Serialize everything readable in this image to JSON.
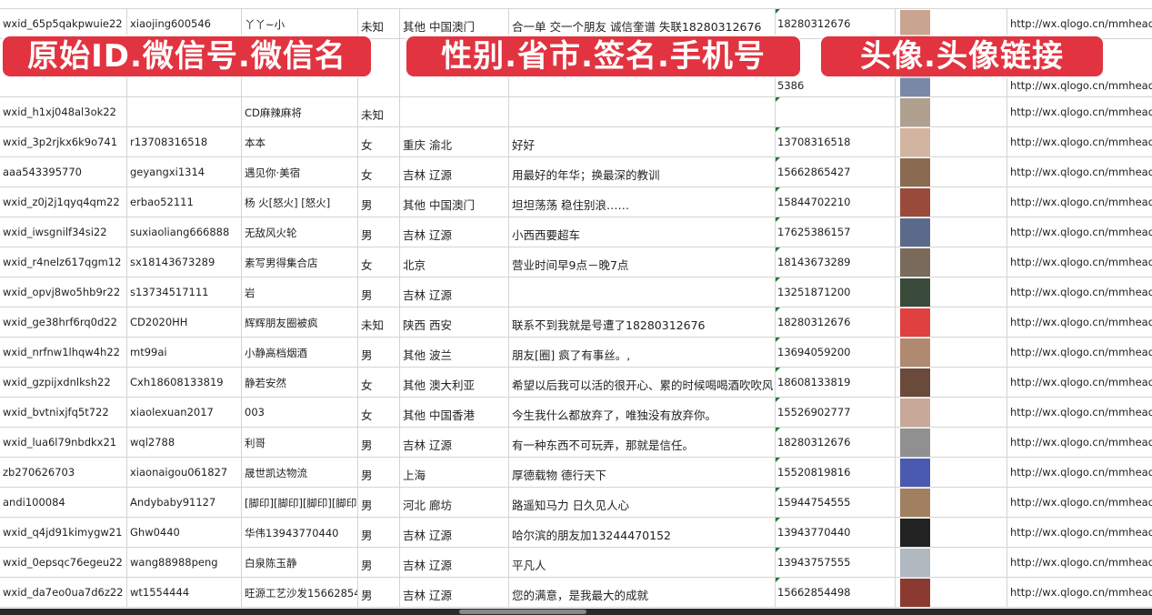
{
  "columns_visible": [
    "原始ID",
    "微信号",
    "微信名",
    "性别",
    "省市",
    "签名",
    "手机号",
    "头像",
    "头像链接"
  ],
  "banners": [
    "原始ID.微信号.微信名",
    "性别.省市.签名.手机号",
    "头像.头像链接"
  ],
  "colors": {
    "banner": "#e23340",
    "grid": "#d4d4d4",
    "marker": "#1e7b34"
  },
  "rows": [
    [
      "wxid_65p5qakpwuie22",
      "xiaojing600546",
      "丫丫~小",
      "未知",
      "其他 中国澳门",
      "合一单 交一个朋友 诚信奎谱 失联18280312676",
      "18280312676",
      "avatar",
      "http://wx.qlogo.cn/mmhead"
    ],
    [
      "",
      "",
      "",
      "",
      "",
      "",
      "5386",
      "avatar",
      "http://wx.qlogo.cn/mmhead"
    ],
    [
      "wxid_h1xj048al3ok22",
      "",
      "CD麻辣麻将",
      "未知",
      "",
      "",
      "",
      "avatar",
      "http://wx.qlogo.cn/mmhead"
    ],
    [
      "wxid_3p2rjkx6k9o741",
      "r13708316518",
      "本本",
      "女",
      "重庆 渝北",
      "好好",
      "13708316518",
      "avatar",
      "http://wx.qlogo.cn/mmhead"
    ],
    [
      "aaa543395770",
      "geyangxi1314",
      "遇见你·美宿",
      "女",
      "吉林 辽源",
      "用最好的年华；换最深的教训",
      "15662865427",
      "avatar",
      "http://wx.qlogo.cn/mmhead"
    ],
    [
      "wxid_z0j2j1qyq4qm22",
      "erbao52111",
      "杨 火[怒火] [怒火]",
      "男",
      "其他 中国澳门",
      "坦坦荡荡 稳住别浪……",
      "15844702210",
      "avatar",
      "http://wx.qlogo.cn/mmhead"
    ],
    [
      "wxid_iwsgnilf34si22",
      "suxiaoliang666888",
      "无敌风火轮",
      "男",
      "吉林 辽源",
      "小西西要超车",
      "17625386157",
      "avatar",
      "http://wx.qlogo.cn/mmhead"
    ],
    [
      "wxid_r4nelz617qgm12",
      "sx18143673289",
      "素写男得集合店",
      "女",
      "北京",
      "营业时间早9点－晚7点",
      "18143673289",
      "avatar",
      "http://wx.qlogo.cn/mmhead"
    ],
    [
      "wxid_opvj8wo5hb9r22",
      "s13734517111",
      "岩",
      "男",
      "吉林 辽源",
      "",
      "13251871200",
      "avatar",
      "http://wx.qlogo.cn/mmhead"
    ],
    [
      "wxid_ge38hrf6rq0d22",
      "CD2020HH",
      "辉辉朋友圈被疯",
      "未知",
      "陕西 西安",
      "联系不到我就是号遭了18280312676",
      "18280312676",
      "avatar",
      "http://wx.qlogo.cn/mmhead"
    ],
    [
      "wxid_nrfnw1lhqw4h22",
      "mt99ai",
      "小静高档烟酒",
      "男",
      "其他 波兰",
      "朋友[圈] 疯了有事丝。,",
      "13694059200",
      "avatar",
      "http://wx.qlogo.cn/mmhead"
    ],
    [
      "wxid_gzpijxdnlksh22",
      "Cxh18608133819",
      "静若安然",
      "女",
      "其他 澳大利亚",
      "希望以后我可以活的很开心、累的时候喝喝酒吹吹风",
      "18608133819",
      "avatar",
      "http://wx.qlogo.cn/mmhead"
    ],
    [
      "wxid_bvtnixjfq5t722",
      "xiaolexuan2017",
      "003",
      "女",
      "其他 中国香港",
      "今生我什么都放弃了，唯独没有放弃你。",
      "15526902777",
      "avatar",
      "http://wx.qlogo.cn/mmhead"
    ],
    [
      "wxid_lua6l79nbdkx21",
      "wql2788",
      "利哥",
      "男",
      "吉林 辽源",
      "有一种东西不可玩弄，那就是信任。",
      "18280312676",
      "avatar",
      "http://wx.qlogo.cn/mmhead"
    ],
    [
      "zb270626703",
      "xiaonaigou061827",
      "晟世凯达物流",
      "男",
      "上海",
      "厚德载物 德行天下",
      "15520819816",
      "avatar",
      "http://wx.qlogo.cn/mmhead"
    ],
    [
      "andi100084",
      "Andybaby91127",
      "[脚印][脚印][脚印][脚印]",
      "男",
      "河北 廊坊",
      "路遥知马力 日久见人心",
      "15944754555",
      "avatar",
      "http://wx.qlogo.cn/mmhead"
    ],
    [
      "wxid_q4jd91kimygw21",
      "Ghw0440",
      "华伟13943770440",
      "男",
      "吉林 辽源",
      "哈尔滨的朋友加13244470152",
      "13943770440",
      "avatar",
      "http://wx.qlogo.cn/mmhead"
    ],
    [
      "wxid_0epsqc76egeu22",
      "wang88988peng",
      "白泉陈玉静",
      "男",
      "吉林 辽源",
      "平凡人",
      "13943757555",
      "avatar",
      "http://wx.qlogo.cn/mmhead"
    ],
    [
      "wxid_da7eo0ua7d6z22",
      "wt1554444",
      "旺源工艺沙发15662854",
      "男",
      "吉林 辽源",
      "您的满意，是我最大的成就",
      "15662854498",
      "avatar",
      "http://wx.qlogo.cn/mmhead"
    ]
  ]
}
